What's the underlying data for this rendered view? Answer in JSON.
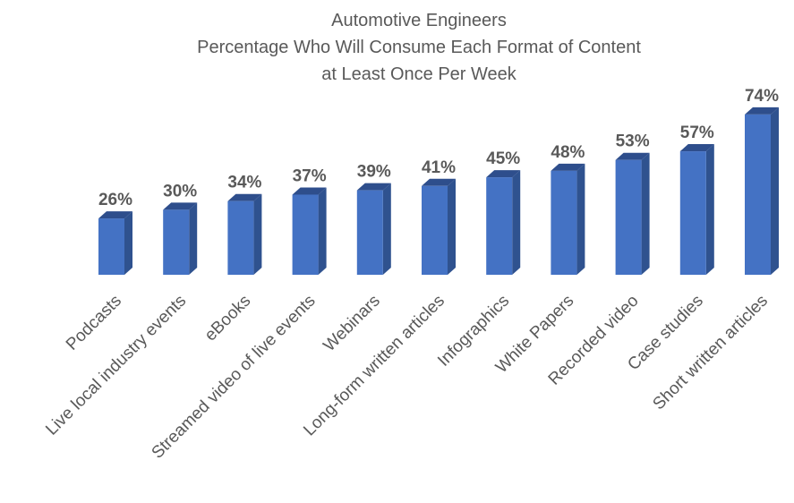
{
  "chart_data": {
    "type": "bar",
    "title_lines": [
      "Automotive Engineers",
      "Percentage Who Will Consume Each Format of Content",
      "at Least Once Per Week"
    ],
    "categories": [
      "Podcasts",
      "Live local industry events",
      "eBooks",
      "Streamed video of live events",
      "Webinars",
      "Long-form written articles",
      "Infographics",
      "White Papers",
      "Recorded video",
      "Case studies",
      "Short written articles"
    ],
    "values": [
      26,
      30,
      34,
      37,
      39,
      41,
      45,
      48,
      53,
      57,
      74
    ],
    "value_labels": [
      "26%",
      "30%",
      "34%",
      "37%",
      "39%",
      "41%",
      "45%",
      "48%",
      "53%",
      "57%",
      "74%"
    ],
    "xlabel": "",
    "ylabel": "",
    "ylim": [
      0,
      80
    ],
    "grid": false,
    "legend": "none",
    "colors": {
      "bar_front": "#4472C4",
      "bar_side": "#2F528F",
      "bar_top": "#2E4E8C",
      "text": "#595959"
    }
  }
}
